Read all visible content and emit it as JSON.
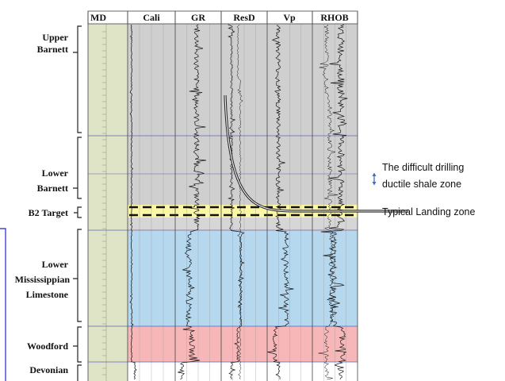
{
  "headers": [
    "MD",
    "Cali",
    "GR",
    "ResD",
    "Vp",
    "RHOB"
  ],
  "formations": [
    {
      "lines": [
        "Upper",
        "Barnett"
      ]
    },
    {
      "lines": [
        "Lower",
        "Barnett"
      ]
    },
    {
      "lines": [
        "B2 Target"
      ]
    },
    {
      "lines": [
        "Lower",
        "Mississippian",
        "Limestone"
      ]
    },
    {
      "lines": [
        "Woodford"
      ]
    },
    {
      "lines": [
        "Devonian"
      ]
    }
  ],
  "annotations": {
    "ductile": [
      "The difficult drilling",
      "ductile shale zone"
    ],
    "landing": "Typical Landing zone"
  },
  "colors": {
    "gray_zone": "#cfcfcf",
    "target_zone": "#fbf5a6",
    "limestone_zone": "#b5d8ef",
    "woodford_zone": "#f7b7b8",
    "md_column": "#dfe4c7",
    "marker": "#5b64b8",
    "frame_highlight": "#2222cc"
  }
}
